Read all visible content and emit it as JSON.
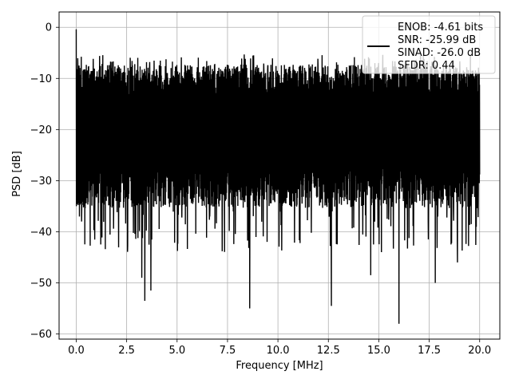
{
  "chart_data": {
    "type": "line",
    "title": "",
    "xlabel": "Frequency [MHz]",
    "ylabel": "PSD [dB]",
    "xlim": [
      -0.85,
      21.0
    ],
    "ylim": [
      -61.0,
      3.0
    ],
    "x_ticks": [
      0.0,
      2.5,
      5.0,
      7.5,
      10.0,
      12.5,
      15.0,
      17.5,
      20.0
    ],
    "x_tick_labels": [
      "0.0",
      "2.5",
      "5.0",
      "7.5",
      "10.0",
      "12.5",
      "15.0",
      "17.5",
      "20.0"
    ],
    "y_ticks": [
      0,
      -10,
      -20,
      -30,
      -40,
      -50,
      -60
    ],
    "y_tick_labels": [
      "0",
      "−10",
      "−20",
      "−30",
      "−40",
      "−50",
      "−60"
    ],
    "grid": true,
    "legend_position": "top-right",
    "legend": {
      "lines": [
        "ENOB: -4.61 bits",
        "SNR: -25.99 dB",
        "SINAD: -26.0 dB",
        "SFDR: 0.44"
      ]
    },
    "line_color": "#000000",
    "series": [
      {
        "x_start": 0.0,
        "x_end": 20.0,
        "peak": {
          "x": 0.0,
          "y": -0.4
        },
        "typical_upper": -10.0,
        "typical_lower": -33.0,
        "max": -5.3,
        "notable_minima": [
          {
            "x": 3.25,
            "y": -49.0
          },
          {
            "x": 3.4,
            "y": -53.5
          },
          {
            "x": 3.7,
            "y": -51.5
          },
          {
            "x": 8.6,
            "y": -55.0
          },
          {
            "x": 12.65,
            "y": -54.5
          },
          {
            "x": 14.6,
            "y": -48.5
          },
          {
            "x": 16.0,
            "y": -58.0
          },
          {
            "x": 17.8,
            "y": -50.0
          },
          {
            "x": 18.9,
            "y": -46.0
          }
        ]
      }
    ]
  }
}
